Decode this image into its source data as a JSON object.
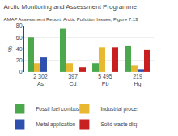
{
  "chart_data": {
    "type": "bar",
    "title": "Arctic Monitoring and Assessment Programme",
    "subtitle": "AMAP Assessment Report: Arctic Pollution Issues, Figure 7.13",
    "categories": [
      "2 302\nAs",
      "397\nCd",
      "5 495\nPb",
      "219\nHg"
    ],
    "series": [
      {
        "name": "Fossil fuel combustion",
        "color": "#4ca84c",
        "values": [
          60,
          75,
          15,
          45
        ]
      },
      {
        "name": "Industrial processes",
        "color": "#e8b830",
        "values": [
          15,
          15,
          43,
          12
        ]
      },
      {
        "name": "Metal application",
        "color": "#3050b0",
        "values": [
          25,
          0,
          0,
          5
        ]
      },
      {
        "name": "Solid waste disposal",
        "color": "#c82020",
        "values": [
          0,
          8,
          43,
          38
        ]
      }
    ],
    "ylabel": "%",
    "y2label": "%",
    "ylim": [
      0,
      80
    ],
    "yticks": [
      0,
      20,
      40,
      60,
      80
    ],
    "y2lim": [
      0,
      80
    ],
    "y2ticks": [
      0,
      20,
      40,
      60,
      80
    ],
    "grid": true
  }
}
